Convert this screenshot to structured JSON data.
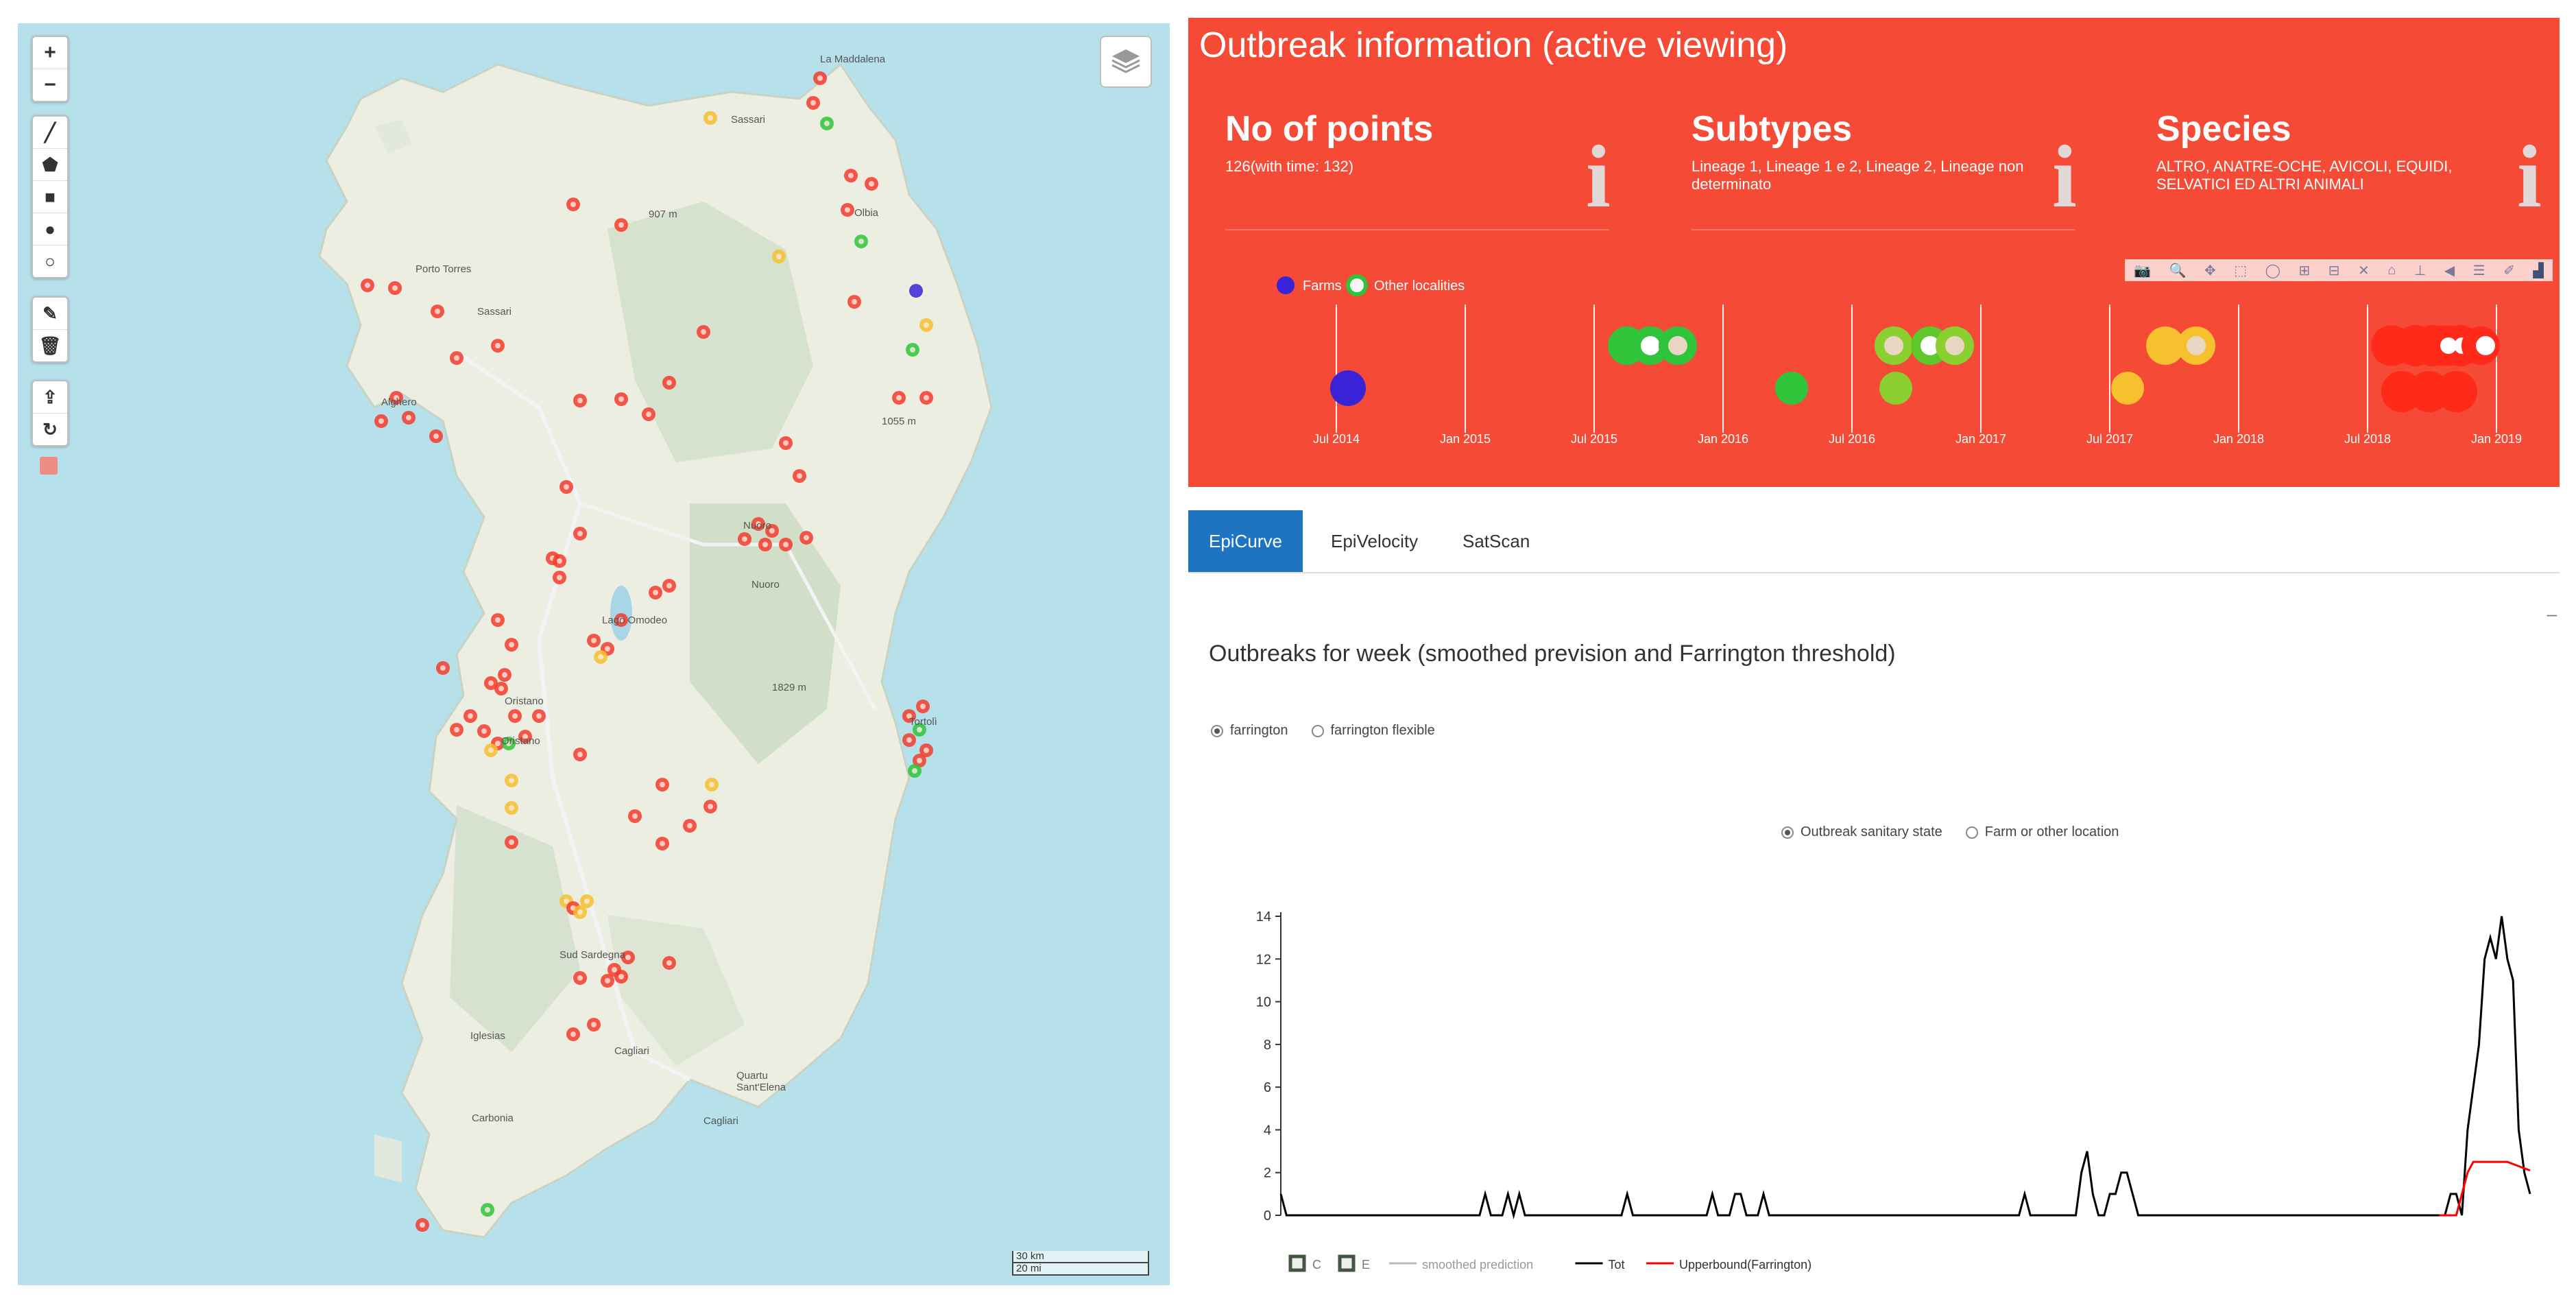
{
  "map": {
    "zoom_in": "+",
    "zoom_out": "−",
    "draw_tools": [
      "polyline-icon",
      "polygon-icon",
      "rectangle-icon",
      "circle-icon",
      "circlemarker-icon"
    ],
    "edit_tools": [
      "edit-icon",
      "trash-icon"
    ],
    "misc_tools": [
      "upload-icon",
      "refresh-icon"
    ],
    "places": [
      {
        "name": "La Maddalena"
      },
      {
        "name": "Sassari"
      },
      {
        "name": "Porto Torres"
      },
      {
        "name": "Sassari"
      },
      {
        "name": "Olbia"
      },
      {
        "name": "Alghero"
      },
      {
        "name": "Nuoro"
      },
      {
        "name": "Nuoro"
      },
      {
        "name": "Oristano"
      },
      {
        "name": "Oristano"
      },
      {
        "name": "Tortolì"
      },
      {
        "name": "Sud Sardegna"
      },
      {
        "name": "Iglesias"
      },
      {
        "name": "Cagliari"
      },
      {
        "name": "Quartu Sant'Elena"
      },
      {
        "name": "Cagliari"
      },
      {
        "name": "Carbonia"
      },
      {
        "name": "907 m"
      },
      {
        "name": "1055 m"
      },
      {
        "name": "Lago Omodeo"
      },
      {
        "name": "1829 m"
      }
    ],
    "scale": {
      "km": "30 km",
      "mi": "20 mi"
    },
    "colors": {
      "sea": "#b6e0ea",
      "land": "#ecefe4",
      "red": "#f43b2c",
      "yellow": "#f6c02e",
      "green": "#2fc43a",
      "blue": "#3a23d6"
    }
  },
  "info": {
    "title": "Outbreak information (active viewing)",
    "boxes": [
      {
        "title": "No of points",
        "value": "126(with time: 132)"
      },
      {
        "title": "Subtypes",
        "value": "Lineage 1, Lineage 1 e 2, Lineage 2, Lineage non determinato"
      },
      {
        "title": "Species",
        "value": "ALTRO, ANATRE-OCHE, AVICOLI, EQUIDI, SELVATICI ED ALTRI ANIMALI"
      }
    ],
    "legend": {
      "farms": "Farms",
      "other": "Other localities"
    },
    "timeline_ticks": [
      "Jul 2014",
      "Jan 2015",
      "Jul 2015",
      "Jan 2016",
      "Jul 2016",
      "Jan 2017",
      "Jul 2017",
      "Jan 2018",
      "Jul 2018",
      "Jan 2019"
    ],
    "modebar": [
      "camera-icon",
      "zoom-icon",
      "pan-icon",
      "box-select-icon",
      "lasso-icon",
      "zoom-in-icon",
      "zoom-out-icon",
      "autoscale-icon",
      "home-icon",
      "spike-icon",
      "hover-closest-icon",
      "hover-compare-icon",
      "edit-plot-icon",
      "plotly-logo-icon"
    ],
    "bg": "#f44a36"
  },
  "tabs": {
    "items": [
      {
        "label": "EpiCurve"
      },
      {
        "label": "EpiVelocity"
      },
      {
        "label": "SatScan"
      }
    ],
    "active": 0,
    "collapse": "–"
  },
  "epicurve": {
    "title": "Outbreaks for week (smoothed prevision and Farrington threshold)",
    "method_options": [
      {
        "label": "farrington",
        "selected": true
      },
      {
        "label": "farrington flexible",
        "selected": false
      }
    ],
    "group_options": [
      {
        "label": "Outbreak sanitary state",
        "selected": true
      },
      {
        "label": "Farm or other location",
        "selected": false
      }
    ],
    "legend": [
      {
        "label": "C",
        "kind": "box"
      },
      {
        "label": "E",
        "kind": "box"
      },
      {
        "label": "smoothed prediction",
        "kind": "line",
        "color": "#bbbbbb"
      },
      {
        "label": "Tot",
        "kind": "line",
        "color": "#000000"
      },
      {
        "label": "Upperbound(Farrington)",
        "kind": "line",
        "color": "#ff0000"
      }
    ]
  },
  "chart_data": {
    "type": "line",
    "ylim": [
      0,
      14
    ],
    "yticks": [
      0,
      2,
      4,
      6,
      8,
      10,
      12,
      14
    ],
    "x_weeks": [
      0,
      220
    ],
    "series": [
      {
        "name": "Tot",
        "color": "#000000",
        "points": [
          [
            0,
            1
          ],
          [
            1,
            0
          ],
          [
            35,
            0
          ],
          [
            36,
            1
          ],
          [
            37,
            0
          ],
          [
            38,
            0
          ],
          [
            39,
            0
          ],
          [
            40,
            1
          ],
          [
            41,
            0
          ],
          [
            42,
            1
          ],
          [
            43,
            0
          ],
          [
            44,
            0
          ],
          [
            45,
            0
          ],
          [
            60,
            0
          ],
          [
            61,
            1
          ],
          [
            62,
            0
          ],
          [
            63,
            0
          ],
          [
            64,
            0
          ],
          [
            75,
            0
          ],
          [
            76,
            1
          ],
          [
            77,
            0
          ],
          [
            78,
            0
          ],
          [
            79,
            0
          ],
          [
            80,
            1
          ],
          [
            81,
            1
          ],
          [
            82,
            0
          ],
          [
            83,
            0
          ],
          [
            84,
            0
          ],
          [
            85,
            1
          ],
          [
            86,
            0
          ],
          [
            130,
            0
          ],
          [
            131,
            1
          ],
          [
            132,
            0
          ],
          [
            140,
            0
          ],
          [
            141,
            2
          ],
          [
            142,
            3
          ],
          [
            143,
            1
          ],
          [
            144,
            0
          ],
          [
            145,
            0
          ],
          [
            146,
            1
          ],
          [
            147,
            1
          ],
          [
            148,
            2
          ],
          [
            149,
            2
          ],
          [
            150,
            1
          ],
          [
            151,
            0
          ],
          [
            205,
            0
          ],
          [
            206,
            1
          ],
          [
            207,
            1
          ],
          [
            208,
            0
          ],
          [
            209,
            4
          ],
          [
            210,
            6
          ],
          [
            211,
            8
          ],
          [
            212,
            12
          ],
          [
            213,
            13
          ],
          [
            214,
            12
          ],
          [
            215,
            14
          ],
          [
            216,
            12
          ],
          [
            217,
            11
          ],
          [
            218,
            4
          ],
          [
            219,
            2
          ],
          [
            220,
            1
          ]
        ]
      },
      {
        "name": "Upperbound(Farrington)",
        "color": "#ff0000",
        "points": [
          [
            204,
            0
          ],
          [
            207,
            0
          ],
          [
            208,
            1
          ],
          [
            209,
            2
          ],
          [
            210,
            2.5
          ],
          [
            212,
            2.5
          ],
          [
            214,
            2.5
          ],
          [
            216,
            2.5
          ],
          [
            218,
            2.3
          ],
          [
            220,
            2.1
          ]
        ]
      }
    ]
  }
}
